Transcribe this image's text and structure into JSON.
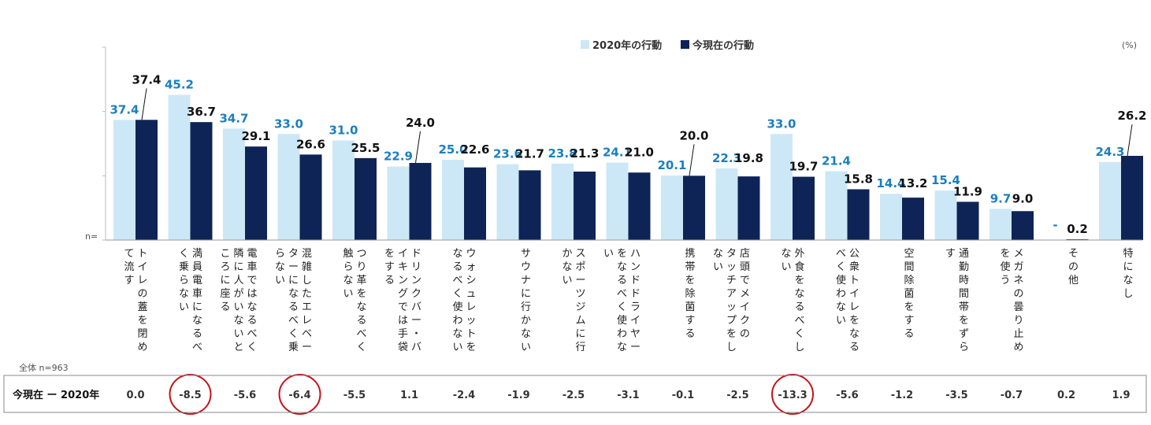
{
  "chart_data": {
    "type": "bar",
    "unit": "(%)",
    "n_label": "n=",
    "legend": [
      "2020年の行動",
      "今現在の行動"
    ],
    "colors": {
      "series_2020": "#cce8f6",
      "series_now": "#0f2456",
      "label_2020": "#1a7fbf",
      "circle": "#c0141b"
    },
    "categories": [
      [
        "トイレの蓋を閉め",
        "て流す"
      ],
      [
        "満員電車になるべ",
        "く乗らない"
      ],
      [
        "電車ではなるべく",
        "隣に人がいないと",
        "ころに座る"
      ],
      [
        "混雑したエレベー",
        "ターになるべく乗",
        "らない"
      ],
      [
        "つり革をなるべく",
        "触らない"
      ],
      [
        "ドリンクバー・バ",
        "イキングでは手袋",
        "をする"
      ],
      [
        "ウォシュレットを",
        "なるべく使わない"
      ],
      [
        "サウナに行かない"
      ],
      [
        "スポーツジムに行",
        "かない"
      ],
      [
        "ハンドドライヤー",
        "をなるべく使わな",
        "い"
      ],
      [
        "携帯を除菌する"
      ],
      [
        "店頭でメイクの",
        "タッチアップをし",
        "ない"
      ],
      [
        "外食をなるべくし",
        "ない"
      ],
      [
        "公衆トイレをなる",
        "べく使わない"
      ],
      [
        "空間除菌をする"
      ],
      [
        "通勤時間帯をずら",
        "す"
      ],
      [
        "メガネの曇り止め",
        "を使う"
      ],
      [
        "その他"
      ],
      [
        "特になし"
      ]
    ],
    "series": [
      {
        "name": "2020年の行動",
        "values": [
          37.4,
          45.2,
          34.7,
          33.0,
          31.0,
          22.9,
          25.0,
          23.6,
          23.8,
          24.1,
          20.1,
          22.3,
          33.0,
          21.4,
          14.4,
          15.4,
          9.7,
          null,
          24.3
        ]
      },
      {
        "name": "今現在の行動",
        "values": [
          37.4,
          36.7,
          29.1,
          26.6,
          25.5,
          24.0,
          22.6,
          21.7,
          21.3,
          21.0,
          20.0,
          19.8,
          19.7,
          15.8,
          13.2,
          11.9,
          9.0,
          0.2,
          26.2
        ]
      }
    ],
    "labels_2020": [
      "37.4",
      "45.2",
      "34.7",
      "33.0",
      "31.0",
      "22.9",
      "25.0",
      "23.6",
      "23.8",
      "24.1",
      "20.1",
      "22.3",
      "33.0",
      "21.4",
      "14.4",
      "15.4",
      "9.7",
      "-",
      "24.3"
    ],
    "labels_now": [
      "37.4",
      "36.7",
      "29.1",
      "26.6",
      "25.5",
      "24.0",
      "22.6",
      "21.7",
      "21.3",
      "21.0",
      "20.0",
      "19.8",
      "19.7",
      "15.8",
      "13.2",
      "11.9",
      "9.0",
      "0.2",
      "26.2"
    ],
    "ylim": [
      0,
      60
    ],
    "sample_note": "全体 n=963",
    "diff_header": "今現在 ー 2020年",
    "diff": [
      "0.0",
      "-8.5",
      "-5.6",
      "-6.4",
      "-5.5",
      "1.1",
      "-2.4",
      "-1.9",
      "-2.5",
      "-3.1",
      "-0.1",
      "-2.5",
      "-13.3",
      "-5.6",
      "-1.2",
      "-3.5",
      "-0.7",
      "0.2",
      "1.9"
    ],
    "highlighted_diffs": [
      1,
      3,
      12
    ]
  }
}
